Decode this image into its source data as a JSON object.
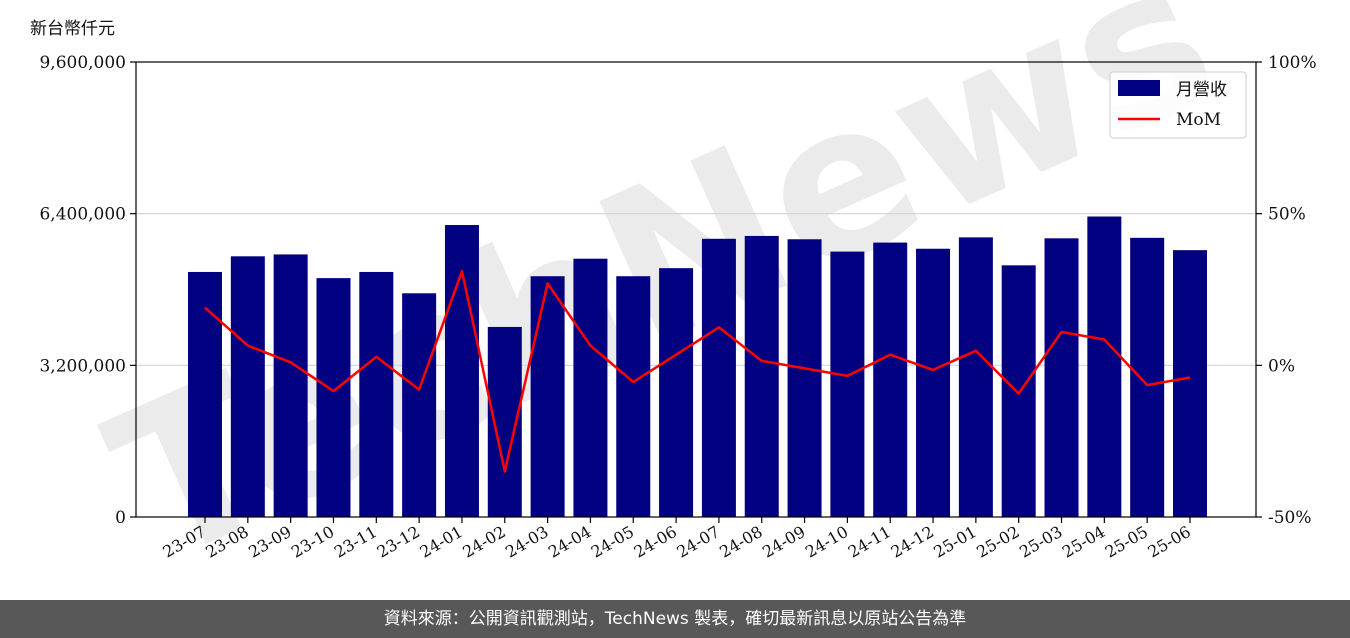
{
  "unit_label": "新台幣仟元",
  "footer": "資料來源：公開資訊觀測站，TechNews 製表，確切最新訊息以原站公告為準",
  "watermark": "TechNews",
  "colors": {
    "bar": "#000080",
    "line": "#ff0000",
    "grid": "#d3d3d3",
    "footer_bg": "#585858"
  },
  "chart_data": {
    "type": "bar",
    "categories": [
      "23-07",
      "23-08",
      "23-09",
      "23-10",
      "23-11",
      "23-12",
      "24-01",
      "24-02",
      "24-03",
      "24-04",
      "24-05",
      "24-06",
      "24-07",
      "24-08",
      "24-09",
      "24-10",
      "24-11",
      "24-12",
      "25-01",
      "25-02",
      "25-03",
      "25-04",
      "25-05",
      "25-06"
    ],
    "series": [
      {
        "name": "月營收",
        "axis": "left",
        "type": "bar",
        "values": [
          5170000,
          5500000,
          5540000,
          5040000,
          5170000,
          4720000,
          6160000,
          4010000,
          5080000,
          5450000,
          5080000,
          5250000,
          5870000,
          5930000,
          5860000,
          5600000,
          5790000,
          5660000,
          5900000,
          5310000,
          5880000,
          6340000,
          5890000,
          5630000
        ]
      },
      {
        "name": "MoM",
        "axis": "right",
        "type": "line",
        "values": [
          19,
          6.5,
          1,
          -8.5,
          2.8,
          -8,
          31,
          -35,
          27,
          6.5,
          -5.5,
          3.5,
          12.5,
          1.5,
          -1,
          -3.5,
          3.5,
          -1.5,
          4.8,
          -9.3,
          11,
          8.5,
          -6.5,
          -4
        ]
      }
    ],
    "y_left": {
      "min": 0,
      "max": 9600000,
      "ticks": [
        0,
        3200000,
        6400000,
        9600000
      ],
      "tick_labels": [
        "0",
        "3,200,000",
        "6,400,000",
        "9,600,000"
      ]
    },
    "y_right": {
      "min": -50,
      "max": 100,
      "ticks": [
        -50,
        0,
        50,
        100
      ],
      "tick_labels": [
        "-50%",
        "0%",
        "50%",
        "100%"
      ]
    },
    "grid": true,
    "legend": "top-right"
  }
}
